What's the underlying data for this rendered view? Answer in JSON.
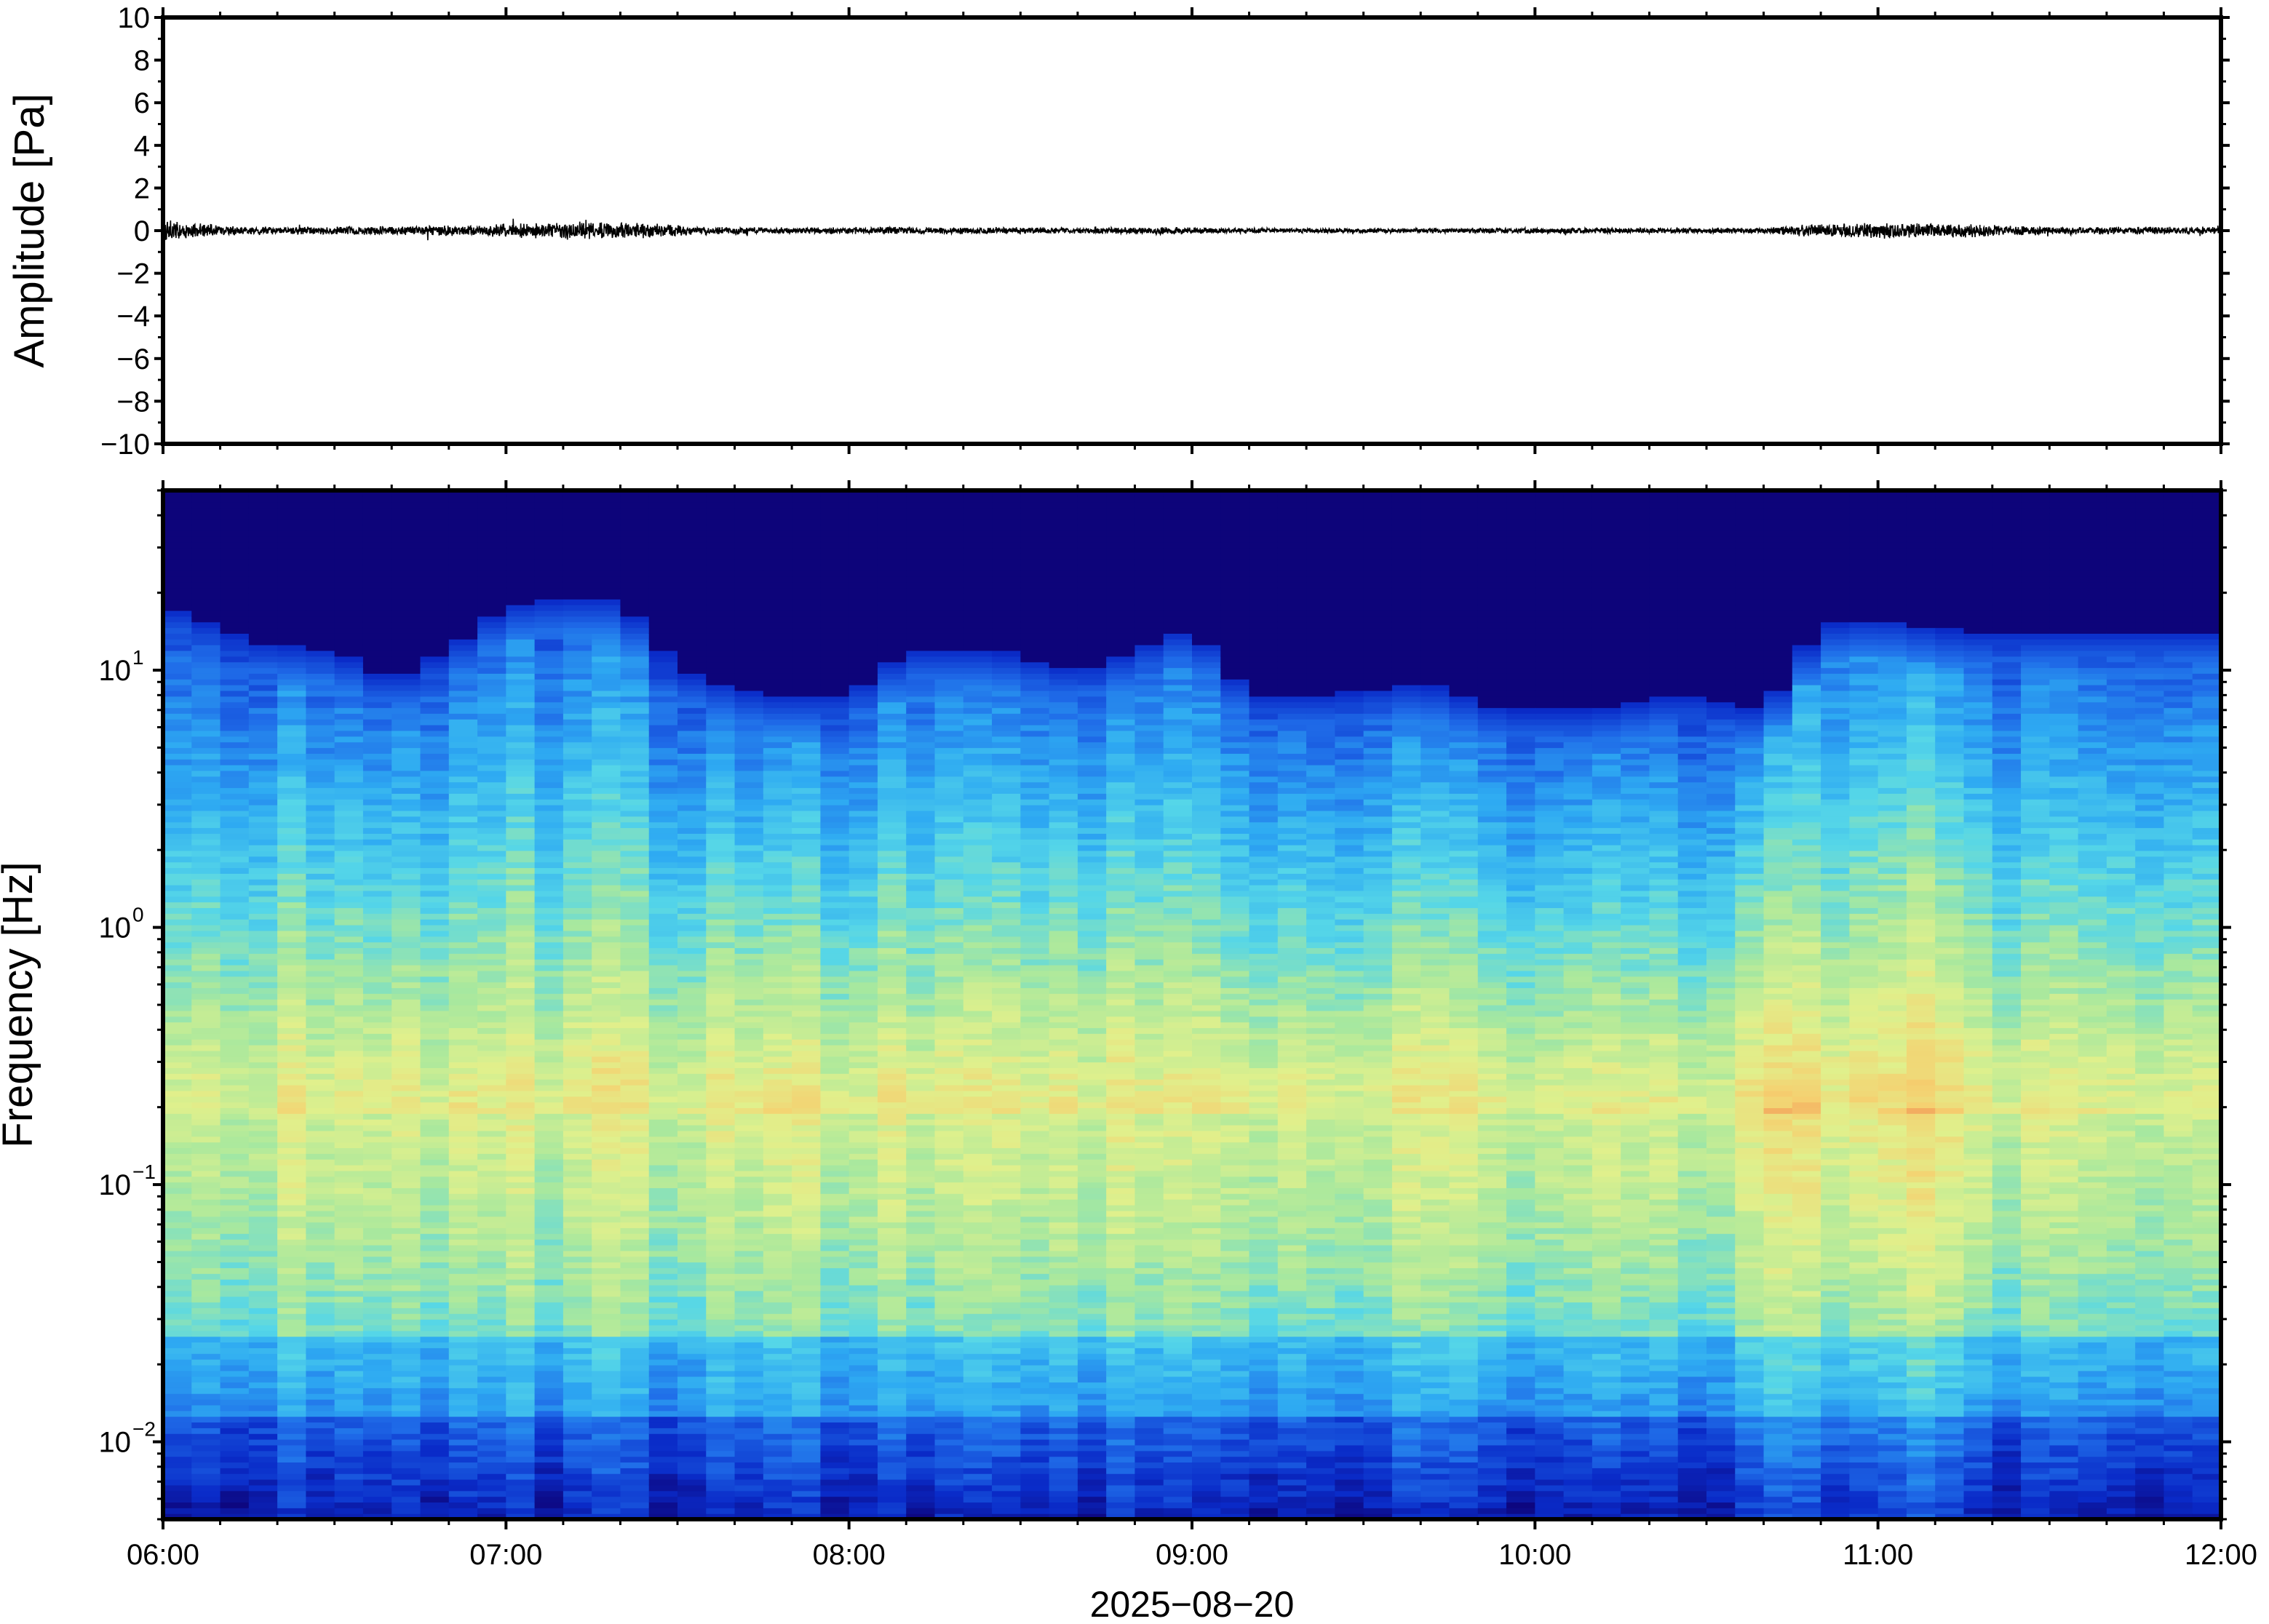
{
  "chart_data": [
    {
      "type": "line",
      "panel": "waveform",
      "ylabel": "Amplitude [Pa]",
      "xlabel": "",
      "ylim": [
        -10,
        10
      ],
      "yticks": [
        {
          "value": 10,
          "label": "10"
        },
        {
          "value": 8,
          "label": "8"
        },
        {
          "value": 6,
          "label": "6"
        },
        {
          "value": 4,
          "label": "4"
        },
        {
          "value": 2,
          "label": "2"
        },
        {
          "value": 0,
          "label": "0"
        },
        {
          "value": -2,
          "label": "−2"
        },
        {
          "value": -4,
          "label": "−4"
        },
        {
          "value": -6,
          "label": "−6"
        },
        {
          "value": -8,
          "label": "−8"
        },
        {
          "value": -10,
          "label": "−10"
        }
      ],
      "xlim": [
        "2025-08-20 06:00",
        "2025-08-20 12:00"
      ],
      "grid": false,
      "series": [
        {
          "line_color": "#000000",
          "envelope_x": [
            "06:00",
            "06:07",
            "06:15",
            "06:30",
            "06:45",
            "06:55",
            "07:05",
            "07:15",
            "07:25",
            "07:35",
            "07:50",
            "08:05",
            "08:20",
            "08:40",
            "08:55",
            "09:05",
            "09:20",
            "09:40",
            "09:55",
            "10:05",
            "10:25",
            "10:40",
            "10:50",
            "11:00",
            "11:10",
            "11:20",
            "11:30",
            "11:45",
            "12:00"
          ],
          "envelope_amplitude": [
            0.6,
            0.35,
            0.2,
            0.2,
            0.25,
            0.3,
            0.4,
            0.45,
            0.4,
            0.2,
            0.15,
            0.2,
            0.18,
            0.15,
            0.2,
            0.15,
            0.12,
            0.12,
            0.15,
            0.15,
            0.15,
            0.15,
            0.35,
            0.4,
            0.4,
            0.3,
            0.2,
            0.2,
            0.2
          ]
        }
      ]
    },
    {
      "type": "heatmap",
      "panel": "spectrogram",
      "ylabel": "Frequency [Hz]",
      "xlabel": "2025−08−20",
      "yscale": "log",
      "ylim": [
        0.005,
        50
      ],
      "yticks": [
        {
          "value": 0.01,
          "base": "10",
          "exp": "−2"
        },
        {
          "value": 0.1,
          "base": "10",
          "exp": "−1"
        },
        {
          "value": 1,
          "base": "10",
          "exp": "0"
        },
        {
          "value": 10,
          "base": "10",
          "exp": "1"
        }
      ],
      "xlim": [
        "2025-08-20 06:00",
        "2025-08-20 12:00"
      ],
      "xticks": [
        "06:00",
        "07:00",
        "08:00",
        "09:00",
        "10:00",
        "11:00",
        "12:00"
      ],
      "colormap": "jet",
      "colormap_stops": [
        "#0d047a",
        "#0a2bc8",
        "#1f6be8",
        "#2eaaf2",
        "#55d6e8",
        "#a8e89e",
        "#e0f08c",
        "#f5d070",
        "#f08a50"
      ],
      "grid": false,
      "bandwidth_upper_edge_hz": {
        "x": [
          "06:00",
          "06:15",
          "06:30",
          "06:40",
          "06:50",
          "07:00",
          "07:10",
          "07:20",
          "07:30",
          "07:45",
          "08:00",
          "08:10",
          "08:25",
          "08:40",
          "08:50",
          "09:00",
          "09:10",
          "09:25",
          "09:40",
          "09:55",
          "10:10",
          "10:25",
          "10:40",
          "10:50",
          "11:00",
          "11:15",
          "11:30",
          "11:45",
          "12:00"
        ],
        "y": [
          18,
          13,
          12,
          9,
          12,
          18,
          19,
          19,
          10,
          8,
          8,
          12,
          12,
          10,
          12,
          15,
          8,
          8,
          9,
          7,
          7,
          8,
          7,
          15,
          16,
          14,
          14,
          14,
          14
        ]
      },
      "spectral_peak_band_hz": [
        0.15,
        0.25
      ]
    }
  ]
}
